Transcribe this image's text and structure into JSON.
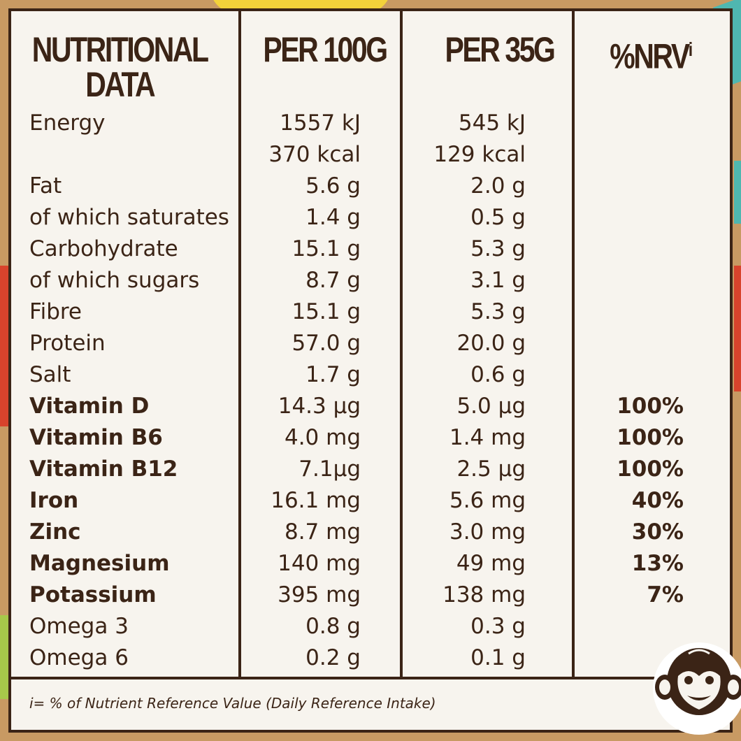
{
  "headers": {
    "nutritional_line1": "NUTRITIONAL",
    "nutritional_line2": "DATA",
    "per100": "PER 100G",
    "per35": "PER 35G",
    "nrv": "%NRV",
    "nrv_superscript": "i"
  },
  "rows": [
    {
      "label": "Energy",
      "per100": "1557 kJ",
      "per35": "545 kJ",
      "nrv": ""
    },
    {
      "label": "",
      "per100": "370 kcal",
      "per35": "129 kcal",
      "nrv": ""
    },
    {
      "label": "Fat",
      "per100": "5.6 g",
      "per35": "2.0 g",
      "nrv": ""
    },
    {
      "label": "of which saturates",
      "per100": "1.4 g",
      "per35": "0.5 g",
      "nrv": ""
    },
    {
      "label": "Carbohydrate",
      "per100": "15.1 g",
      "per35": "5.3 g",
      "nrv": ""
    },
    {
      "label": "of which sugars",
      "per100": "8.7 g",
      "per35": "3.1 g",
      "nrv": ""
    },
    {
      "label": "Fibre",
      "per100": "15.1 g",
      "per35": "5.3 g",
      "nrv": ""
    },
    {
      "label": "Protein",
      "per100": "57.0 g",
      "per35": "20.0 g",
      "nrv": ""
    },
    {
      "label": "Salt",
      "per100": "1.7 g",
      "per35": "0.6 g",
      "nrv": ""
    },
    {
      "label": "Vitamin D",
      "per100": "14.3 µg",
      "per35": "5.0 µg",
      "nrv": "100%",
      "bold": true
    },
    {
      "label": "Vitamin B6",
      "per100": "4.0 mg",
      "per35": "1.4 mg",
      "nrv": "100%",
      "bold": true
    },
    {
      "label": "Vitamin B12",
      "per100": "7.1µg",
      "per35": "2.5 µg",
      "nrv": "100%",
      "bold": true
    },
    {
      "label": "Iron",
      "per100": "16.1 mg",
      "per35": "5.6 mg",
      "nrv": "40%",
      "bold": true
    },
    {
      "label": "Zinc",
      "per100": "8.7 mg",
      "per35": "3.0 mg",
      "nrv": "30%",
      "bold": true
    },
    {
      "label": "Magnesium",
      "per100": "140 mg",
      "per35": "49 mg",
      "nrv": "13%",
      "bold": true
    },
    {
      "label": "Potassium",
      "per100": "395 mg",
      "per35": "138 mg",
      "nrv": "7%",
      "bold": true
    },
    {
      "label": "Omega 3",
      "per100": "0.8 g",
      "per35": "0.3 g",
      "nrv": ""
    },
    {
      "label": "Omega 6",
      "per100": "0.2 g",
      "per35": "0.1 g",
      "nrv": ""
    }
  ],
  "footnote": "i= % of Nutrient Reference Value (Daily Reference Intake)",
  "colors": {
    "text": "#3b2416",
    "panel": "#f7f4ee",
    "background": "#c89a63"
  },
  "icons": {
    "mascot": "monkey-face-icon"
  }
}
